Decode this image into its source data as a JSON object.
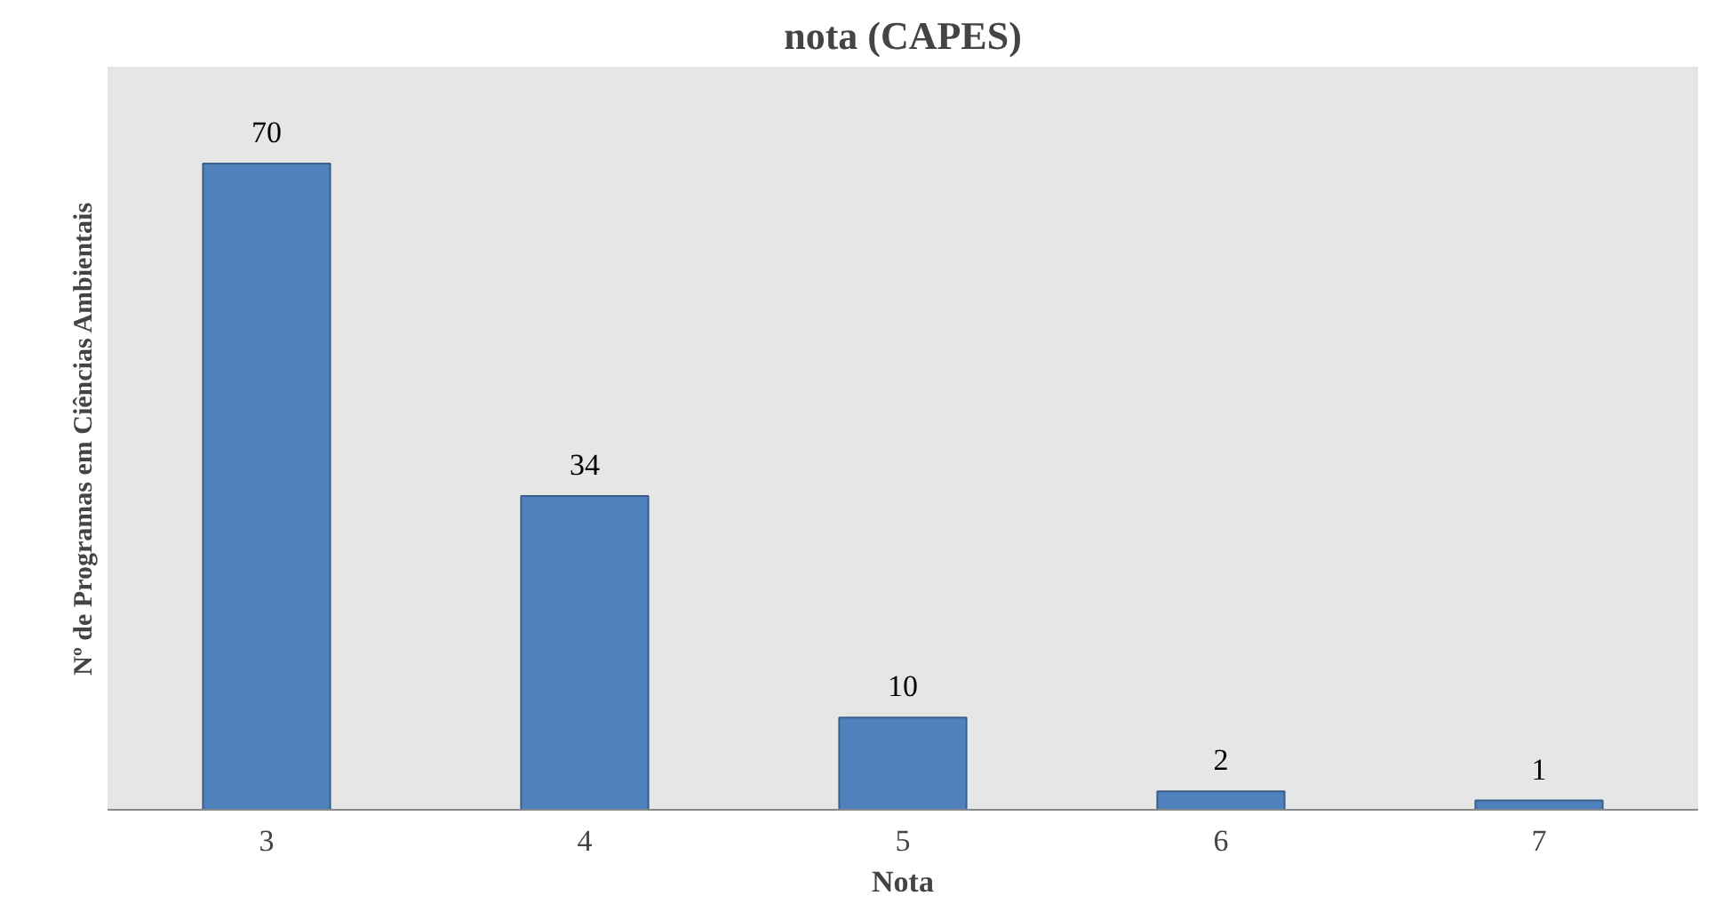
{
  "chart_data": {
    "type": "bar",
    "title": "nota (CAPES)",
    "xlabel": "Nota",
    "ylabel": "Nº de Programas em Ciências Ambientais",
    "categories": [
      "3",
      "4",
      "5",
      "6",
      "7"
    ],
    "values": [
      70,
      34,
      10,
      2,
      1
    ],
    "color": "#4f81bd",
    "data_labels": true
  }
}
